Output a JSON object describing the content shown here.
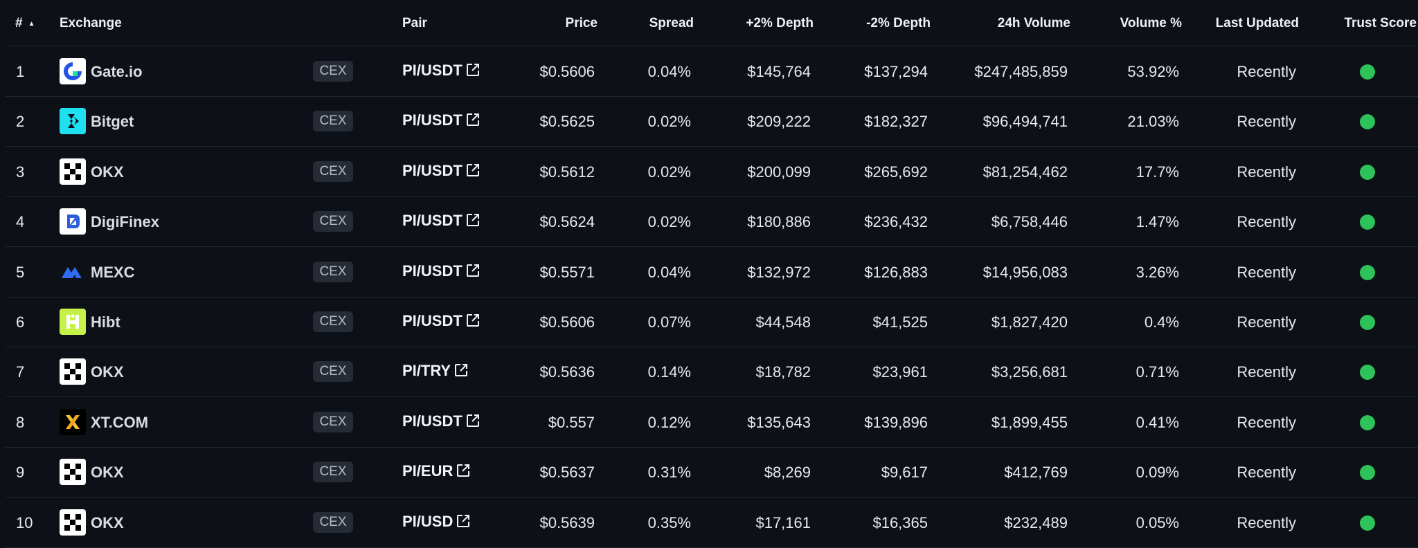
{
  "headers": {
    "rank": "#",
    "exchange": "Exchange",
    "pair": "Pair",
    "price": "Price",
    "spread": "Spread",
    "depth_plus": "+2% Depth",
    "depth_minus": "-2% Depth",
    "volume": "24h Volume",
    "volume_pct": "Volume %",
    "last_updated": "Last Updated",
    "trust_score": "Trust Score"
  },
  "icons": {
    "sort": "sort-ascending-icon",
    "external": "external-link-icon"
  },
  "colors": {
    "trust_green": "#2ec25a",
    "badge_bg": "#262c36"
  },
  "rows": [
    {
      "rank": "1",
      "exchange": "Gate.io",
      "logo": "gateio-logo",
      "type": "CEX",
      "pair": "PI/USDT",
      "price": "$0.5606",
      "spread": "0.04%",
      "depth_plus": "$145,764",
      "depth_minus": "$137,294",
      "volume": "$247,485,859",
      "volume_pct": "53.92%",
      "last_updated": "Recently"
    },
    {
      "rank": "2",
      "exchange": "Bitget",
      "logo": "bitget-logo",
      "type": "CEX",
      "pair": "PI/USDT",
      "price": "$0.5625",
      "spread": "0.02%",
      "depth_plus": "$209,222",
      "depth_minus": "$182,327",
      "volume": "$96,494,741",
      "volume_pct": "21.03%",
      "last_updated": "Recently"
    },
    {
      "rank": "3",
      "exchange": "OKX",
      "logo": "okx-logo",
      "type": "CEX",
      "pair": "PI/USDT",
      "price": "$0.5612",
      "spread": "0.02%",
      "depth_plus": "$200,099",
      "depth_minus": "$265,692",
      "volume": "$81,254,462",
      "volume_pct": "17.7%",
      "last_updated": "Recently"
    },
    {
      "rank": "4",
      "exchange": "DigiFinex",
      "logo": "digifinex-logo",
      "type": "CEX",
      "pair": "PI/USDT",
      "price": "$0.5624",
      "spread": "0.02%",
      "depth_plus": "$180,886",
      "depth_minus": "$236,432",
      "volume": "$6,758,446",
      "volume_pct": "1.47%",
      "last_updated": "Recently"
    },
    {
      "rank": "5",
      "exchange": "MEXC",
      "logo": "mexc-logo",
      "type": "CEX",
      "pair": "PI/USDT",
      "price": "$0.5571",
      "spread": "0.04%",
      "depth_plus": "$132,972",
      "depth_minus": "$126,883",
      "volume": "$14,956,083",
      "volume_pct": "3.26%",
      "last_updated": "Recently"
    },
    {
      "rank": "6",
      "exchange": "Hibt",
      "logo": "hibt-logo",
      "type": "CEX",
      "pair": "PI/USDT",
      "price": "$0.5606",
      "spread": "0.07%",
      "depth_plus": "$44,548",
      "depth_minus": "$41,525",
      "volume": "$1,827,420",
      "volume_pct": "0.4%",
      "last_updated": "Recently"
    },
    {
      "rank": "7",
      "exchange": "OKX",
      "logo": "okx-logo",
      "type": "CEX",
      "pair": "PI/TRY",
      "price": "$0.5636",
      "spread": "0.14%",
      "depth_plus": "$18,782",
      "depth_minus": "$23,961",
      "volume": "$3,256,681",
      "volume_pct": "0.71%",
      "last_updated": "Recently"
    },
    {
      "rank": "8",
      "exchange": "XT.COM",
      "logo": "xtcom-logo",
      "type": "CEX",
      "pair": "PI/USDT",
      "price": "$0.557",
      "spread": "0.12%",
      "depth_plus": "$135,643",
      "depth_minus": "$139,896",
      "volume": "$1,899,455",
      "volume_pct": "0.41%",
      "last_updated": "Recently"
    },
    {
      "rank": "9",
      "exchange": "OKX",
      "logo": "okx-logo",
      "type": "CEX",
      "pair": "PI/EUR",
      "price": "$0.5637",
      "spread": "0.31%",
      "depth_plus": "$8,269",
      "depth_minus": "$9,617",
      "volume": "$412,769",
      "volume_pct": "0.09%",
      "last_updated": "Recently"
    },
    {
      "rank": "10",
      "exchange": "OKX",
      "logo": "okx-logo",
      "type": "CEX",
      "pair": "PI/USD",
      "price": "$0.5639",
      "spread": "0.35%",
      "depth_plus": "$17,161",
      "depth_minus": "$16,365",
      "volume": "$232,489",
      "volume_pct": "0.05%",
      "last_updated": "Recently"
    }
  ]
}
